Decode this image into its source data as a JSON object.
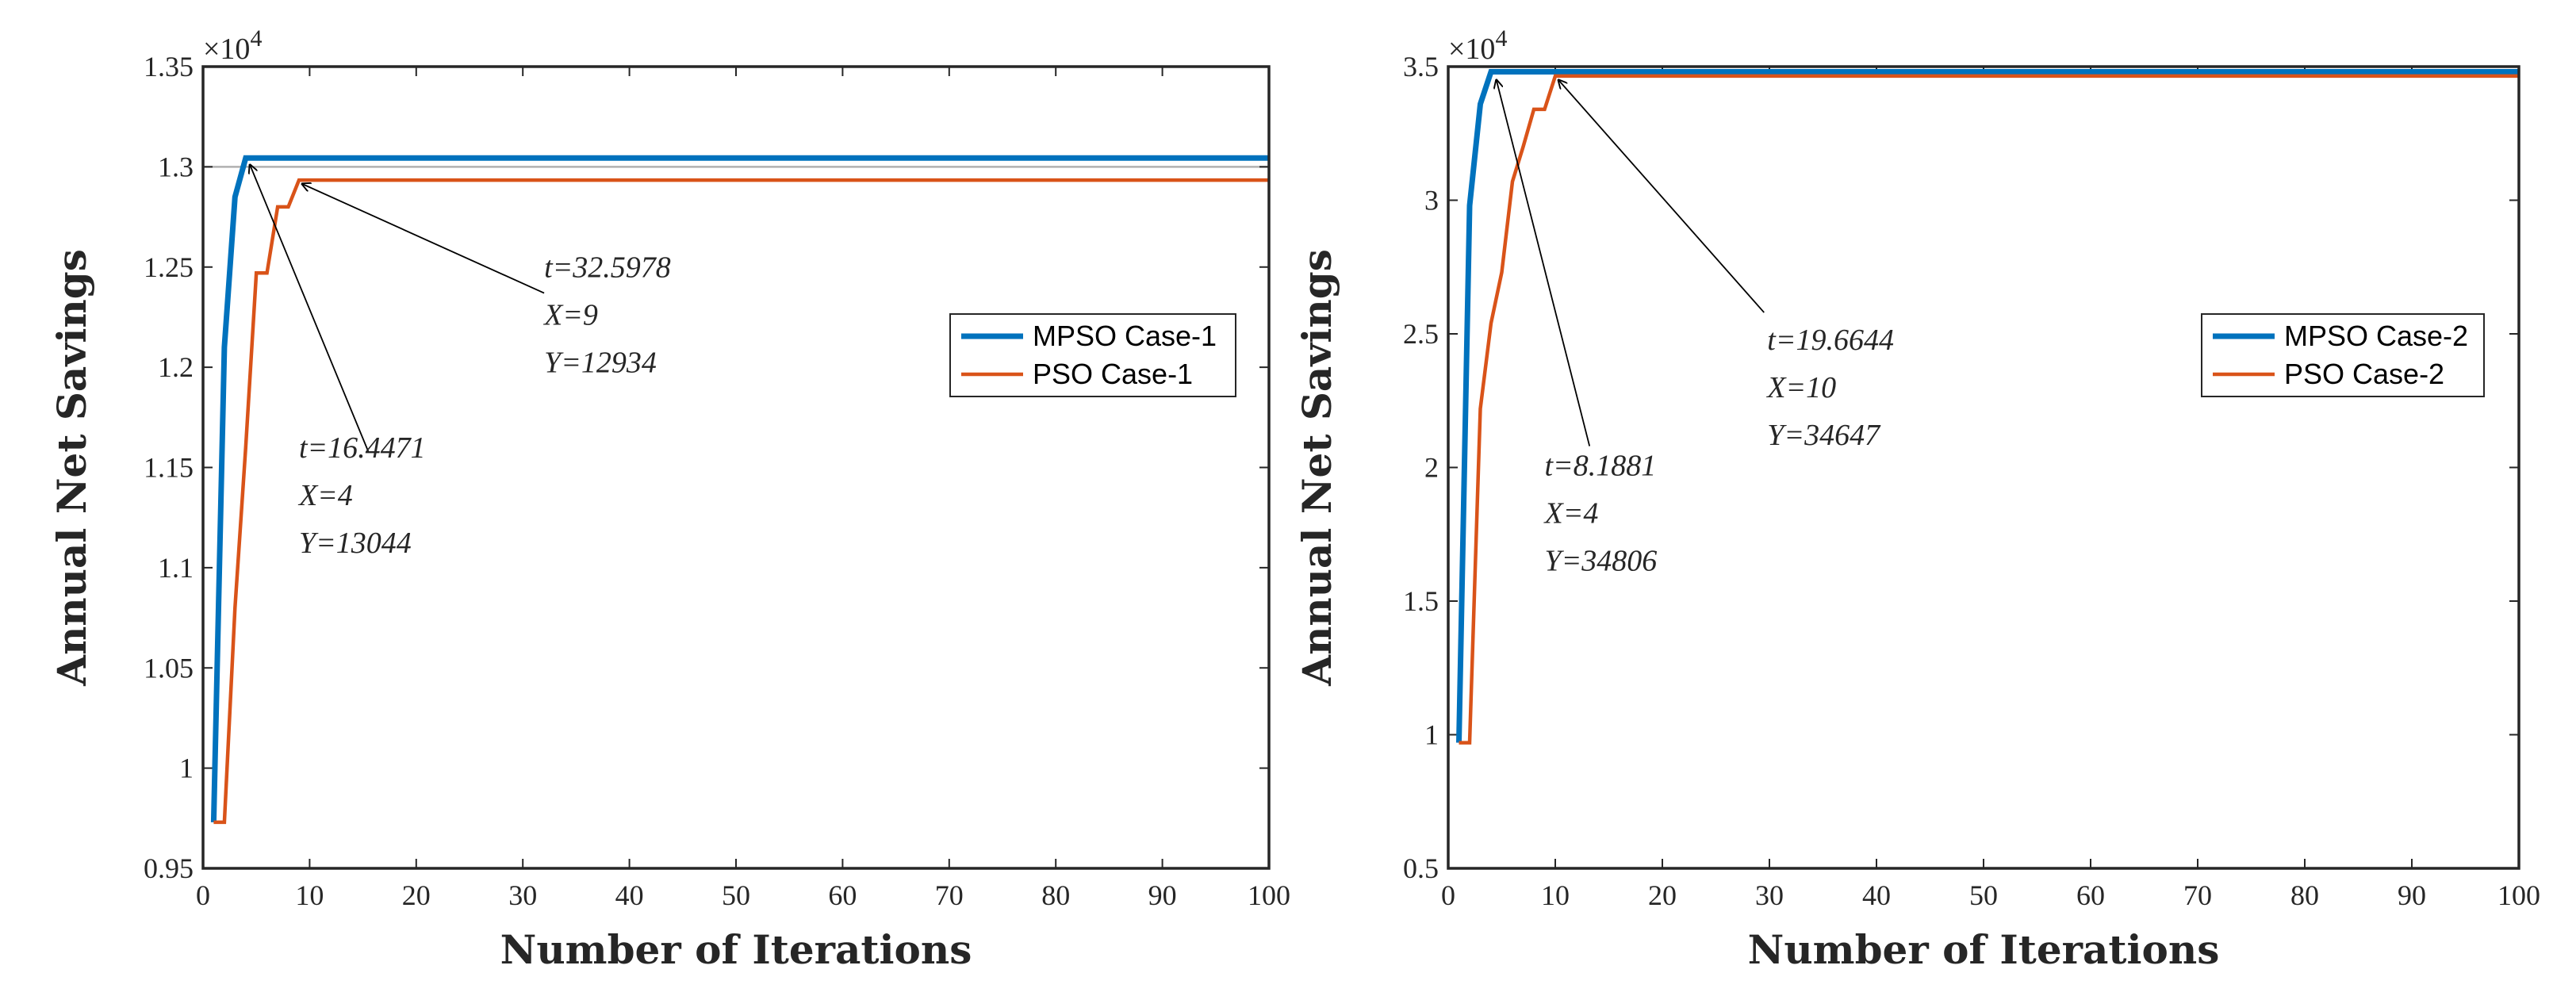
{
  "chart_data": [
    {
      "type": "line",
      "xlabel": "Number of Iterations",
      "ylabel": "Annual Net Savings",
      "xlim": [
        0,
        100
      ],
      "ylim": [
        0.95,
        1.35
      ],
      "xticks": [
        0,
        10,
        20,
        30,
        40,
        50,
        60,
        70,
        80,
        90,
        100
      ],
      "yticks": [
        0.95,
        1,
        1.05,
        1.1,
        1.15,
        1.2,
        1.25,
        1.3,
        1.35
      ],
      "ytick_labels": [
        "0.95",
        "1",
        "1.05",
        "1.1",
        "1.15",
        "1.2",
        "1.25",
        "1.3",
        "1.35"
      ],
      "exponent_base": "×10",
      "exponent_power": "4",
      "reference_line": 1.3,
      "legend_position": "right",
      "series": [
        {
          "name": "MPSO Case-1",
          "color": "#0072bd",
          "width": "thick",
          "x": [
            1,
            2,
            3,
            4,
            100
          ],
          "values": [
            0.973,
            1.21,
            1.285,
            1.3044,
            1.3044
          ]
        },
        {
          "name": "PSO Case-1",
          "color": "#d95319",
          "width": "thin",
          "x": [
            1,
            2,
            3,
            4,
            5,
            6,
            7,
            8,
            9,
            100
          ],
          "values": [
            0.973,
            0.973,
            1.08,
            1.16,
            1.247,
            1.247,
            1.28,
            1.28,
            1.2934,
            1.2934
          ]
        }
      ],
      "annotations": [
        {
          "lines": [
            "t=32.5978",
            "X=9",
            "Y=12934"
          ],
          "text_at": [
            32,
            1.245
          ],
          "arrow_from": [
            32,
            1.237
          ],
          "arrow_to": [
            9.3,
            1.2915
          ]
        },
        {
          "lines": [
            "t=16.4471",
            "X=4",
            "Y=13044"
          ],
          "text_at": [
            9,
            1.155
          ],
          "arrow_from": [
            15.5,
            1.158
          ],
          "arrow_to": [
            4.4,
            1.301
          ]
        }
      ]
    },
    {
      "type": "line",
      "xlabel": "Number of Iterations",
      "ylabel": "Annual Net Savings",
      "xlim": [
        0,
        100
      ],
      "ylim": [
        0.5,
        3.5
      ],
      "xticks": [
        0,
        10,
        20,
        30,
        40,
        50,
        60,
        70,
        80,
        90,
        100
      ],
      "yticks": [
        0.5,
        1,
        1.5,
        2,
        2.5,
        3,
        3.5
      ],
      "ytick_labels": [
        "0.5",
        "1",
        "1.5",
        "2",
        "2.5",
        "3",
        "3.5"
      ],
      "exponent_base": "×10",
      "exponent_power": "4",
      "legend_position": "top-right",
      "series": [
        {
          "name": "MPSO Case-2",
          "color": "#0072bd",
          "width": "thick",
          "x": [
            1,
            2,
            3,
            4,
            100
          ],
          "values": [
            0.97,
            2.98,
            3.36,
            3.4806,
            3.4806
          ]
        },
        {
          "name": "PSO Case-2",
          "color": "#d95319",
          "width": "thin",
          "x": [
            1,
            2,
            3,
            4,
            5,
            6,
            7,
            8,
            9,
            10,
            100
          ],
          "values": [
            0.97,
            0.97,
            2.22,
            2.54,
            2.73,
            3.07,
            3.2,
            3.34,
            3.34,
            3.4647,
            3.4647
          ]
        }
      ],
      "annotations": [
        {
          "lines": [
            "t=8.1881",
            "X=4",
            "Y=34806"
          ],
          "text_at": [
            9,
            1.97
          ],
          "arrow_from": [
            13.2,
            2.08
          ],
          "arrow_to": [
            4.5,
            3.45
          ]
        },
        {
          "lines": [
            "t=19.6644",
            "X=10",
            "Y=34647"
          ],
          "text_at": [
            29.8,
            2.44
          ],
          "arrow_from": [
            29.5,
            2.58
          ],
          "arrow_to": [
            10.3,
            3.45
          ]
        }
      ]
    }
  ]
}
